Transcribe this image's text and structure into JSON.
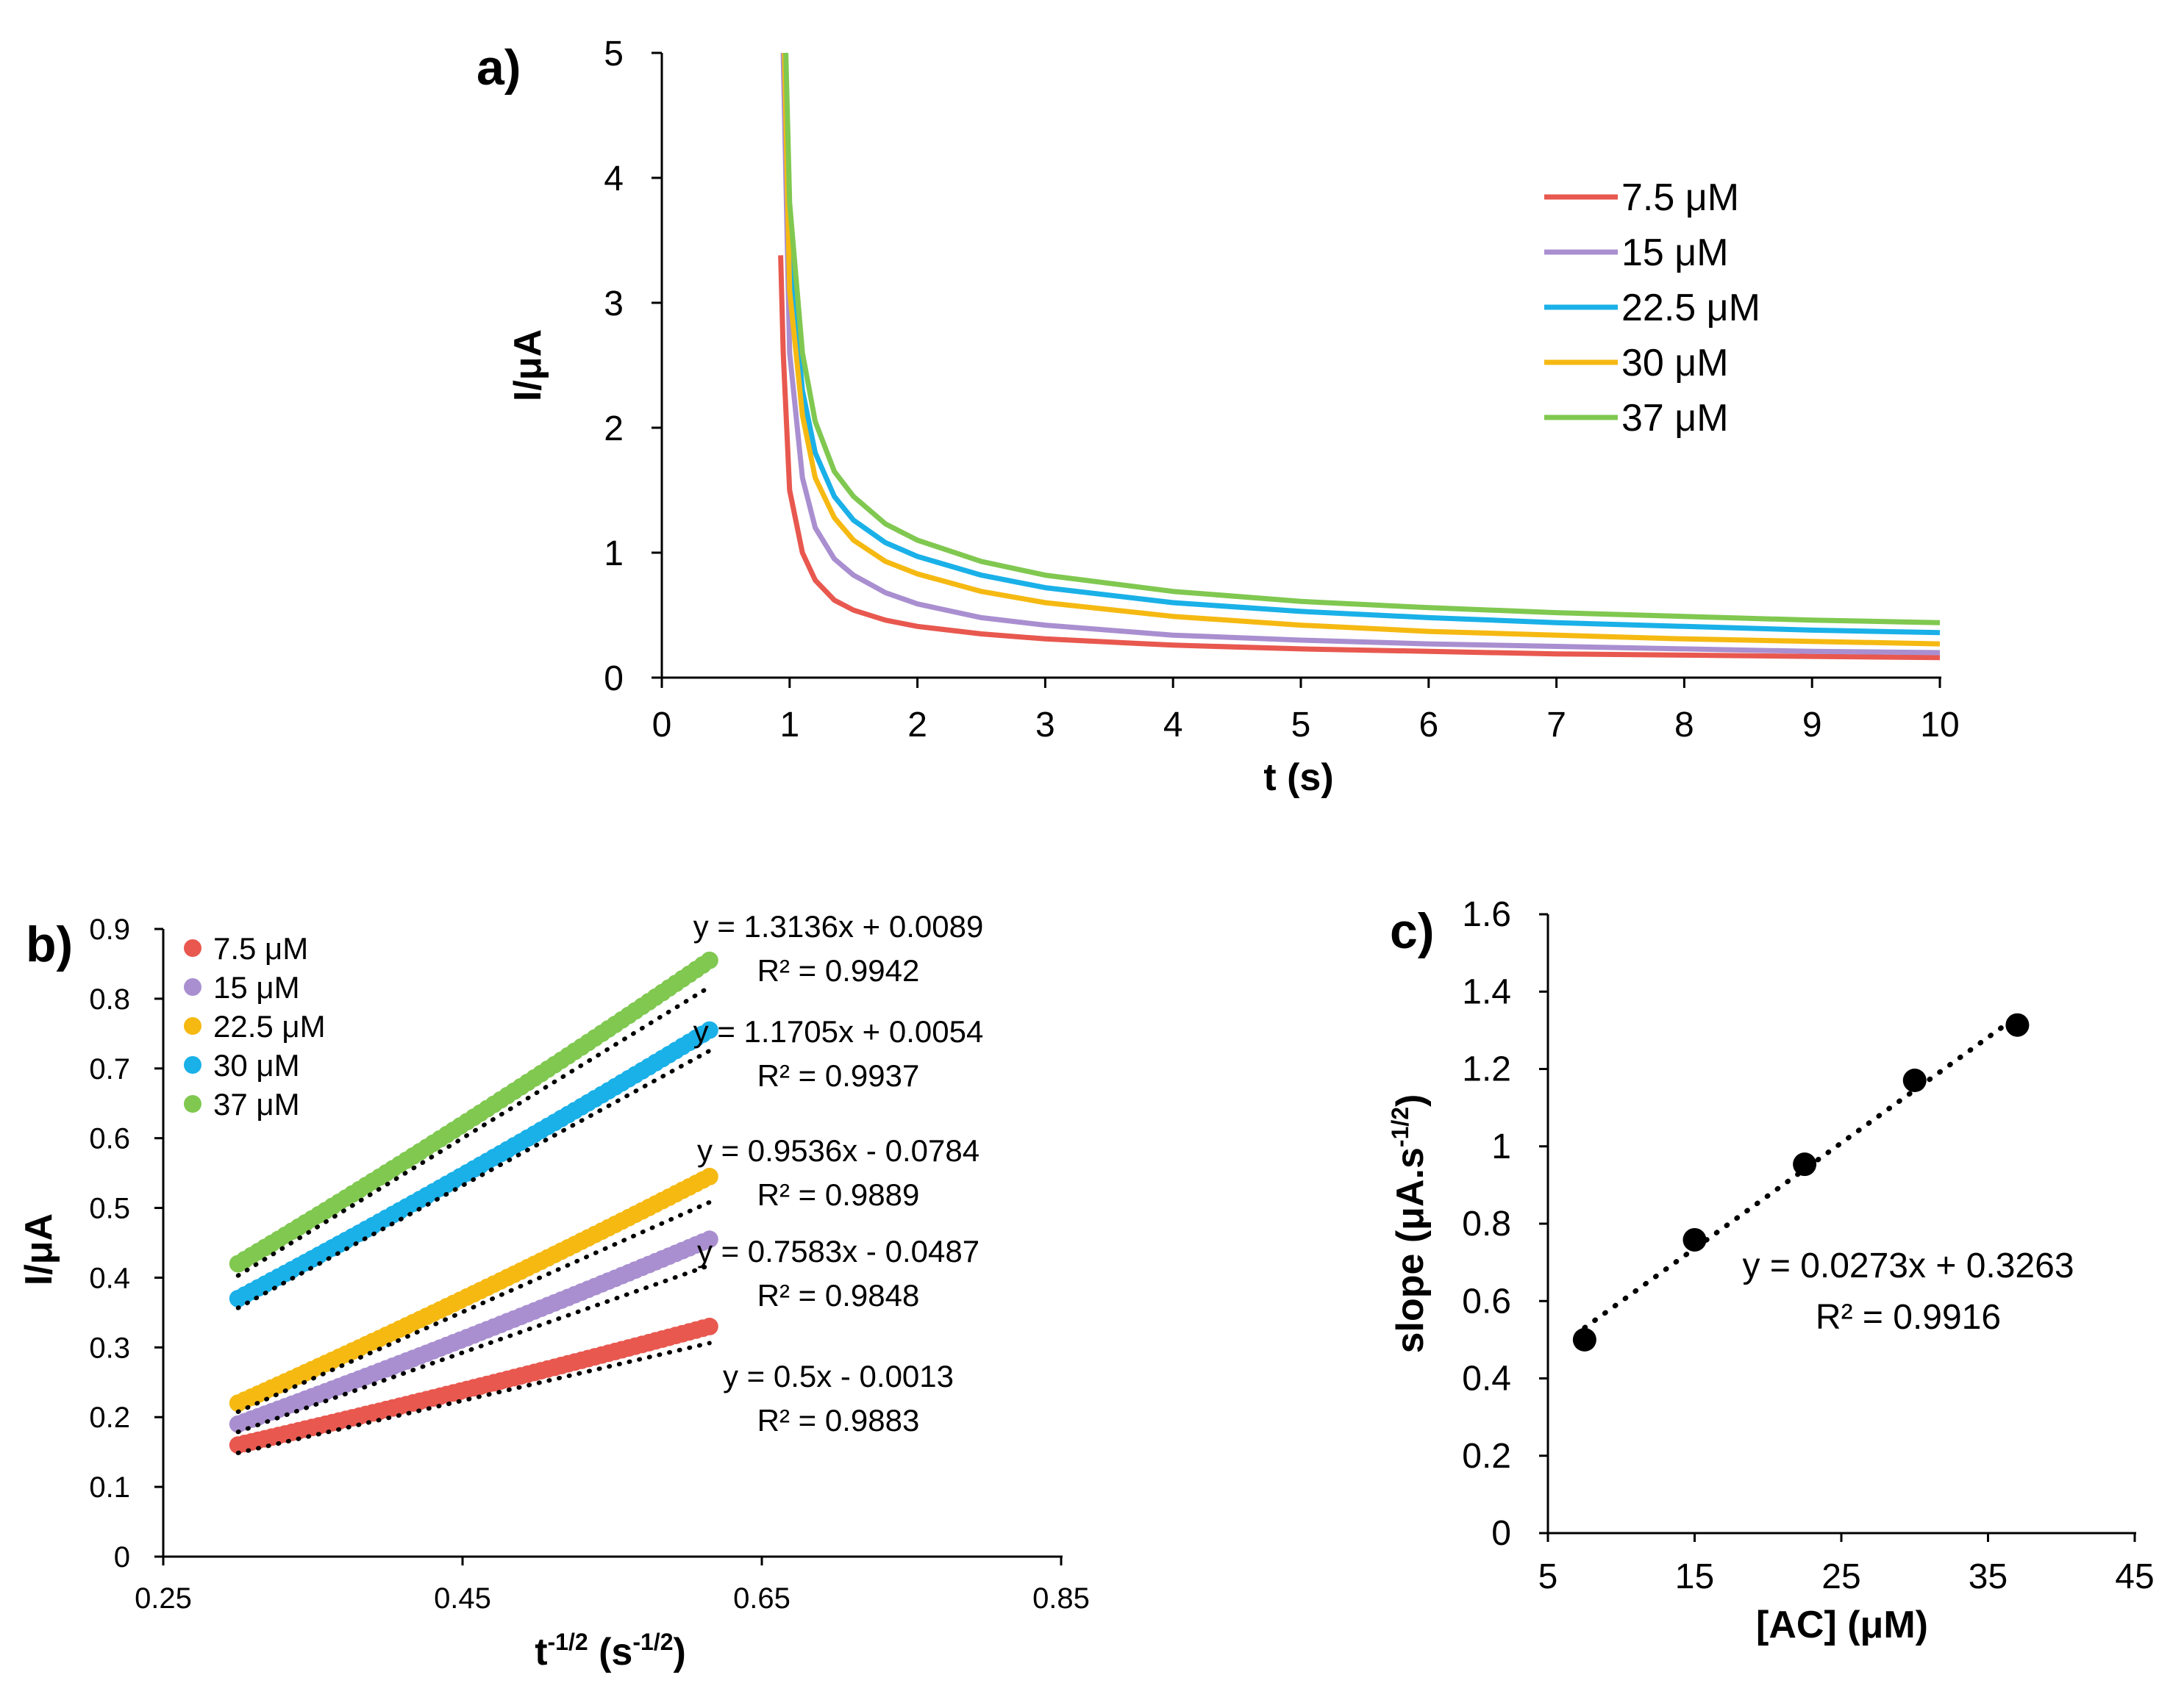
{
  "chart_data": [
    {
      "id": "a",
      "type": "line",
      "panel_label": "a)",
      "xlabel": "t (s)",
      "ylabel": "I/μA",
      "xlim": [
        0,
        10
      ],
      "ylim": [
        0,
        5
      ],
      "xticks": [
        "0",
        "1",
        "2",
        "3",
        "4",
        "5",
        "6",
        "7",
        "8",
        "9",
        "10"
      ],
      "yticks": [
        "0",
        "1",
        "2",
        "3",
        "4",
        "5"
      ],
      "legend_position": "top-right",
      "series": [
        {
          "name": "7.5 μM",
          "color": "#e8584f",
          "x": [
            0.93,
            0.95,
            1.0,
            1.1,
            1.2,
            1.35,
            1.5,
            1.75,
            2.0,
            2.5,
            3.0,
            4.0,
            5.0,
            6.0,
            7.0,
            8.0,
            9.0,
            10.0
          ],
          "y": [
            3.38,
            2.6,
            1.5,
            1.0,
            0.78,
            0.62,
            0.54,
            0.46,
            0.41,
            0.35,
            0.31,
            0.26,
            0.23,
            0.21,
            0.19,
            0.18,
            0.17,
            0.16
          ]
        },
        {
          "name": "15 μM",
          "color": "#a98fd0",
          "x": [
            0.95,
            1.0,
            1.1,
            1.2,
            1.35,
            1.5,
            1.75,
            2.0,
            2.5,
            3.0,
            4.0,
            5.0,
            6.0,
            7.0,
            8.0,
            9.0,
            10.0
          ],
          "y": [
            5.0,
            2.6,
            1.6,
            1.2,
            0.95,
            0.82,
            0.68,
            0.59,
            0.48,
            0.42,
            0.34,
            0.3,
            0.27,
            0.25,
            0.23,
            0.21,
            0.2
          ]
        },
        {
          "name": "22.5 μM",
          "color": "#1ab0e8",
          "x": [
            0.96,
            1.0,
            1.1,
            1.2,
            1.35,
            1.5,
            1.75,
            2.0,
            2.5,
            3.0,
            4.0,
            5.0,
            6.0,
            7.0,
            8.0,
            9.0,
            10.0
          ],
          "y": [
            5.0,
            3.4,
            2.3,
            1.8,
            1.45,
            1.26,
            1.08,
            0.97,
            0.82,
            0.72,
            0.6,
            0.53,
            0.48,
            0.44,
            0.41,
            0.38,
            0.36
          ]
        },
        {
          "name": "30 μM",
          "color": "#f5b912",
          "x": [
            0.96,
            1.0,
            1.1,
            1.2,
            1.35,
            1.5,
            1.75,
            2.0,
            2.5,
            3.0,
            4.0,
            5.0,
            6.0,
            7.0,
            8.0,
            9.0,
            10.0
          ],
          "y": [
            5.0,
            3.1,
            2.1,
            1.6,
            1.28,
            1.1,
            0.93,
            0.83,
            0.69,
            0.6,
            0.49,
            0.42,
            0.37,
            0.34,
            0.31,
            0.29,
            0.27
          ]
        },
        {
          "name": "37 μM",
          "color": "#80c850",
          "x": [
            0.97,
            1.0,
            1.1,
            1.2,
            1.35,
            1.5,
            1.75,
            2.0,
            2.5,
            3.0,
            4.0,
            5.0,
            6.0,
            7.0,
            8.0,
            9.0,
            10.0
          ],
          "y": [
            5.0,
            3.8,
            2.6,
            2.05,
            1.65,
            1.45,
            1.23,
            1.1,
            0.93,
            0.82,
            0.69,
            0.61,
            0.56,
            0.52,
            0.49,
            0.46,
            0.44
          ]
        }
      ]
    },
    {
      "id": "b",
      "type": "scatter",
      "panel_label": "b)",
      "xlabel_main": "t",
      "xlabel_sup1": "-1/2",
      "xlabel_mid": " (s",
      "xlabel_sup2": "-1/2",
      "xlabel_end": ")",
      "ylabel": "I/μA",
      "xlim": [
        0.25,
        0.85
      ],
      "ylim": [
        0,
        0.9
      ],
      "xticks": [
        "0.25",
        "0.45",
        "0.65",
        "0.85"
      ],
      "yticks": [
        "0",
        "0.1",
        "0.2",
        "0.3",
        "0.4",
        "0.5",
        "0.6",
        "0.7",
        "0.8",
        "0.9"
      ],
      "legend_position": "top-left",
      "x_range": [
        0.3,
        0.615
      ],
      "series": [
        {
          "name": "7.5 μM",
          "color": "#e8584f",
          "y_start": 0.16,
          "y_end": 0.33,
          "slope": 0.5,
          "intercept": -0.0013,
          "equation": "y = 0.5x - 0.0013",
          "r2": "R² = 0.9883"
        },
        {
          "name": "15 μM",
          "color": "#a98fd0",
          "y_start": 0.19,
          "y_end": 0.455,
          "slope": 0.7583,
          "intercept": -0.0487,
          "equation": "y = 0.7583x - 0.0487",
          "r2": "R² = 0.9848"
        },
        {
          "name": "22.5 μM",
          "color": "#f5b912",
          "y_start": 0.22,
          "y_end": 0.545,
          "slope": 0.9536,
          "intercept": -0.0784,
          "equation": "y = 0.9536x - 0.0784",
          "r2": "R² = 0.9889"
        },
        {
          "name": "30 μM",
          "color": "#1ab0e8",
          "y_start": 0.37,
          "y_end": 0.755,
          "slope": 1.1705,
          "intercept": 0.0054,
          "equation": "y = 1.1705x + 0.0054",
          "r2": "R² = 0.9937"
        },
        {
          "name": "37 μM",
          "color": "#80c850",
          "y_start": 0.42,
          "y_end": 0.855,
          "slope": 1.3136,
          "intercept": 0.0089,
          "equation": "y = 1.3136x + 0.0089",
          "r2": "R² = 0.9942"
        }
      ]
    },
    {
      "id": "c",
      "type": "scatter",
      "panel_label": "c)",
      "xlabel": "[AC] (μM)",
      "ylabel_main": "slope (μA.s",
      "ylabel_sup": "-1/2",
      "ylabel_end": ")",
      "xlim": [
        5,
        45
      ],
      "ylim": [
        0,
        1.6
      ],
      "xticks": [
        "5",
        "15",
        "25",
        "35",
        "45"
      ],
      "yticks": [
        "0",
        "0.2",
        "0.4",
        "0.6",
        "0.8",
        "1",
        "1.2",
        "1.4",
        "1.6"
      ],
      "x": [
        7.5,
        15,
        22.5,
        30,
        37
      ],
      "y": [
        0.5,
        0.7583,
        0.9536,
        1.1705,
        1.3136
      ],
      "color": "#000000",
      "trendline": {
        "slope": 0.0273,
        "intercept": 0.3263
      },
      "equation": "y = 0.0273x + 0.3263",
      "r2": "R² = 0.9916"
    }
  ]
}
